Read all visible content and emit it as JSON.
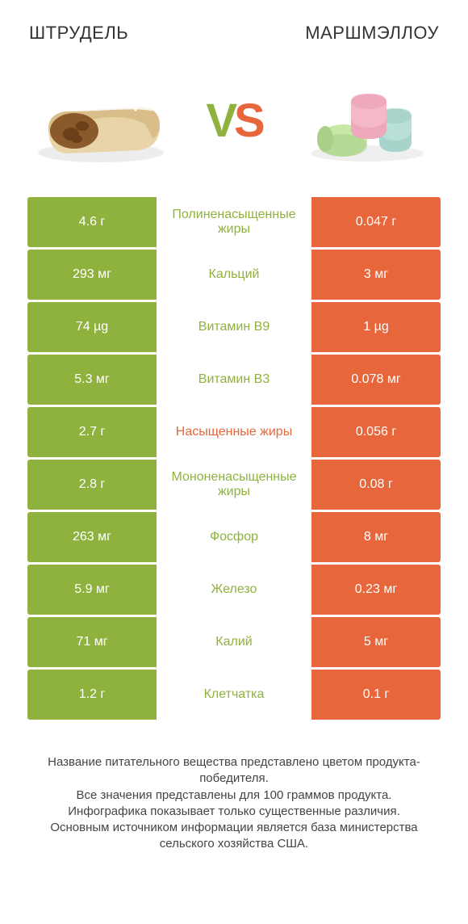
{
  "colors": {
    "green": "#8fb23e",
    "orange": "#e8663c",
    "green_text": "#8fb23e",
    "orange_text": "#e8663c",
    "title_text": "#333333",
    "footer_text": "#444444",
    "background": "#ffffff"
  },
  "header": {
    "left_title": "ШТРУДЕЛЬ",
    "right_title": "МАРШМЭЛЛОУ"
  },
  "vs": {
    "v": "V",
    "s": "S"
  },
  "comparison": {
    "type": "table",
    "rows": [
      {
        "left": "4.6 г",
        "label": "Полиненасыщенные жиры",
        "right": "0.047 г",
        "winner": "left"
      },
      {
        "left": "293 мг",
        "label": "Кальций",
        "right": "3 мг",
        "winner": "left"
      },
      {
        "left": "74 µg",
        "label": "Витамин B9",
        "right": "1 µg",
        "winner": "left"
      },
      {
        "left": "5.3 мг",
        "label": "Витамин B3",
        "right": "0.078 мг",
        "winner": "left"
      },
      {
        "left": "2.7 г",
        "label": "Насыщенные жиры",
        "right": "0.056 г",
        "winner": "right"
      },
      {
        "left": "2.8 г",
        "label": "Мононенасыщенные жиры",
        "right": "0.08 г",
        "winner": "left"
      },
      {
        "left": "263 мг",
        "label": "Фосфор",
        "right": "8 мг",
        "winner": "left"
      },
      {
        "left": "5.9 мг",
        "label": "Железо",
        "right": "0.23 мг",
        "winner": "left"
      },
      {
        "left": "71 мг",
        "label": "Калий",
        "right": "5 мг",
        "winner": "left"
      },
      {
        "left": "1.2 г",
        "label": "Клетчатка",
        "right": "0.1 г",
        "winner": "left"
      }
    ]
  },
  "footer": {
    "line1": "Название питательного вещества представлено цветом продукта-победителя.",
    "line2": "Все значения представлены для 100 граммов продукта.",
    "line3": "Инфографика показывает только существенные различия.",
    "line4": "Основным источником информации является база министерства сельского хозяйства США."
  },
  "illustrations": {
    "strudel": {
      "pastry_fill": "#e8d4a8",
      "pastry_shadow": "#c9a86b",
      "filling": "#8b5a2b",
      "filling_dark": "#6b3f1a",
      "sugar": "#ffffff"
    },
    "marshmallow": {
      "pink": "#f5b8c8",
      "pink_shadow": "#e89ab0",
      "green": "#c8e8a8",
      "green_shadow": "#a8d088",
      "blue": "#b8e0d8",
      "blue_shadow": "#98c8c0"
    }
  }
}
